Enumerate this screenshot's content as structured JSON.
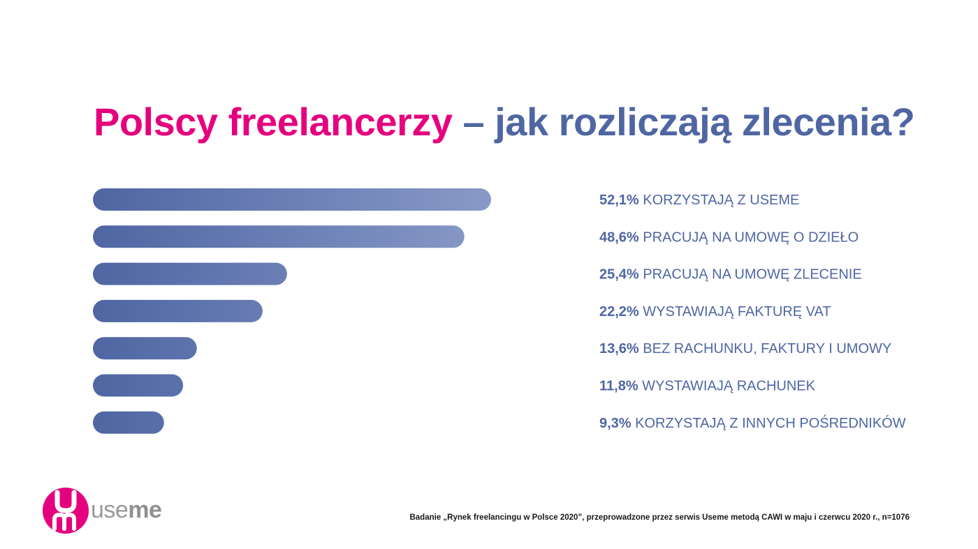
{
  "title": {
    "part1": "Polscy freelancerzy",
    "part2": "– jak rozliczają zlecenia?"
  },
  "colors": {
    "pink": "#e5007e",
    "blue": "#4f66a3",
    "bar_dark": "#4f66a3",
    "bar_light": "#8a9bc8"
  },
  "chart_data": {
    "type": "bar",
    "orientation": "horizontal",
    "categories": [
      "KORZYSTAJĄ Z USEME",
      "PRACUJĄ NA UMOWĘ O DZIEŁO",
      "PRACUJĄ NA UMOWĘ ZLECENIE",
      "WYSTAWIAJĄ FAKTURĘ VAT",
      "BEZ RACHUNKU, FAKTURY I UMOWY",
      "WYSTAWIAJĄ RACHUNEK",
      "KORZYSTAJĄ Z INNYCH POŚREDNIKÓW"
    ],
    "values": [
      52.1,
      48.6,
      25.4,
      22.2,
      13.6,
      11.8,
      9.3
    ],
    "value_labels": [
      "52,1%",
      "48,6%",
      "25,4%",
      "22,2%",
      "13,6%",
      "11,8%",
      "9,3%"
    ],
    "grid": false,
    "axes_visible": false
  },
  "logo": {
    "text_use": "use",
    "text_me": "me"
  },
  "footnote": "Badanie „Rynek freelancingu w Polsce 2020”, przeprowadzone przez serwis Useme metodą CAWI w maju i czerwcu 2020 r., n=1076"
}
